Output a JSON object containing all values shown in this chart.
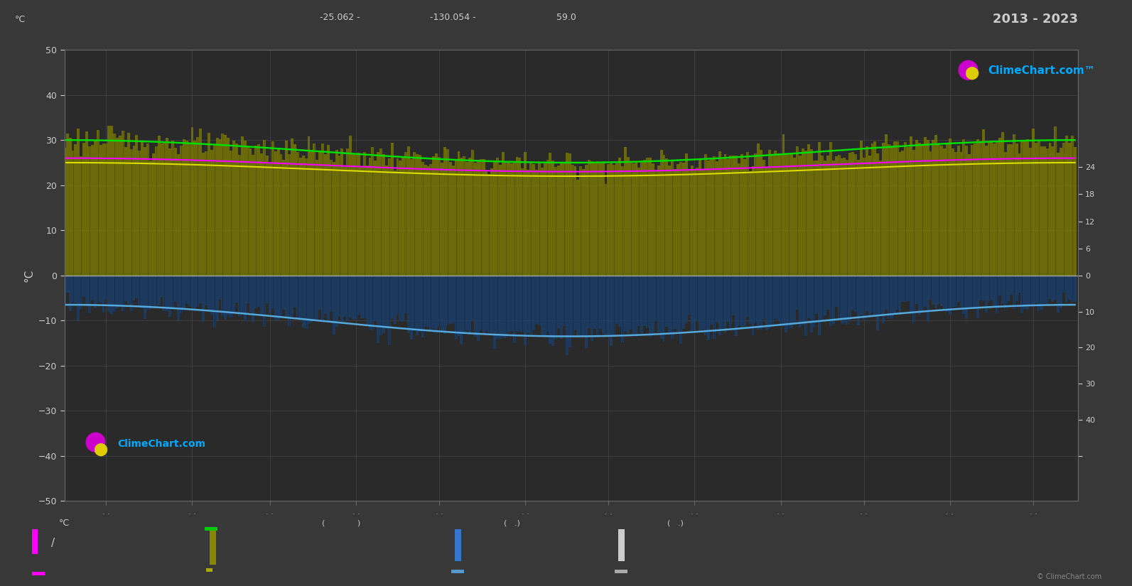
{
  "year_range": "2013 - 2023",
  "bg_color": "#383838",
  "plot_bg_color": "#2a2a2a",
  "left_ylabel": "°C",
  "ylim": [
    -50,
    50
  ],
  "grid_color": "#555555",
  "temp_max_color": "#00dd00",
  "temp_mean_color": "#ff00ff",
  "temp_min_color": "#55aadd",
  "dew_mean_color": "#dddd00",
  "fill_above_color": "#888800",
  "fill_below_color": "#1a3f6a",
  "watermark": "ClimeChart.com",
  "copyright": "© ClimeChart.com",
  "temp_max_base": 27.5,
  "temp_max_amp": 2.5,
  "temp_mean_base": 24.5,
  "temp_mean_amp": 1.5,
  "dew_base": 23.5,
  "dew_amp": 1.5,
  "temp_min_base": -10.0,
  "temp_min_amp": 3.5,
  "n_days": 365,
  "phase": 3.14159,
  "coords_lat": "-25.062 -",
  "coords_lon": "-130.054 -",
  "coords_elev": "59.0",
  "right_yticks_pos": [
    24,
    18,
    12,
    6,
    0,
    -8,
    -16,
    -24,
    -32,
    -40
  ],
  "right_ytick_labels": [
    "24",
    "18",
    "12",
    "6",
    "0",
    "10",
    "20",
    "30",
    "40",
    ""
  ]
}
